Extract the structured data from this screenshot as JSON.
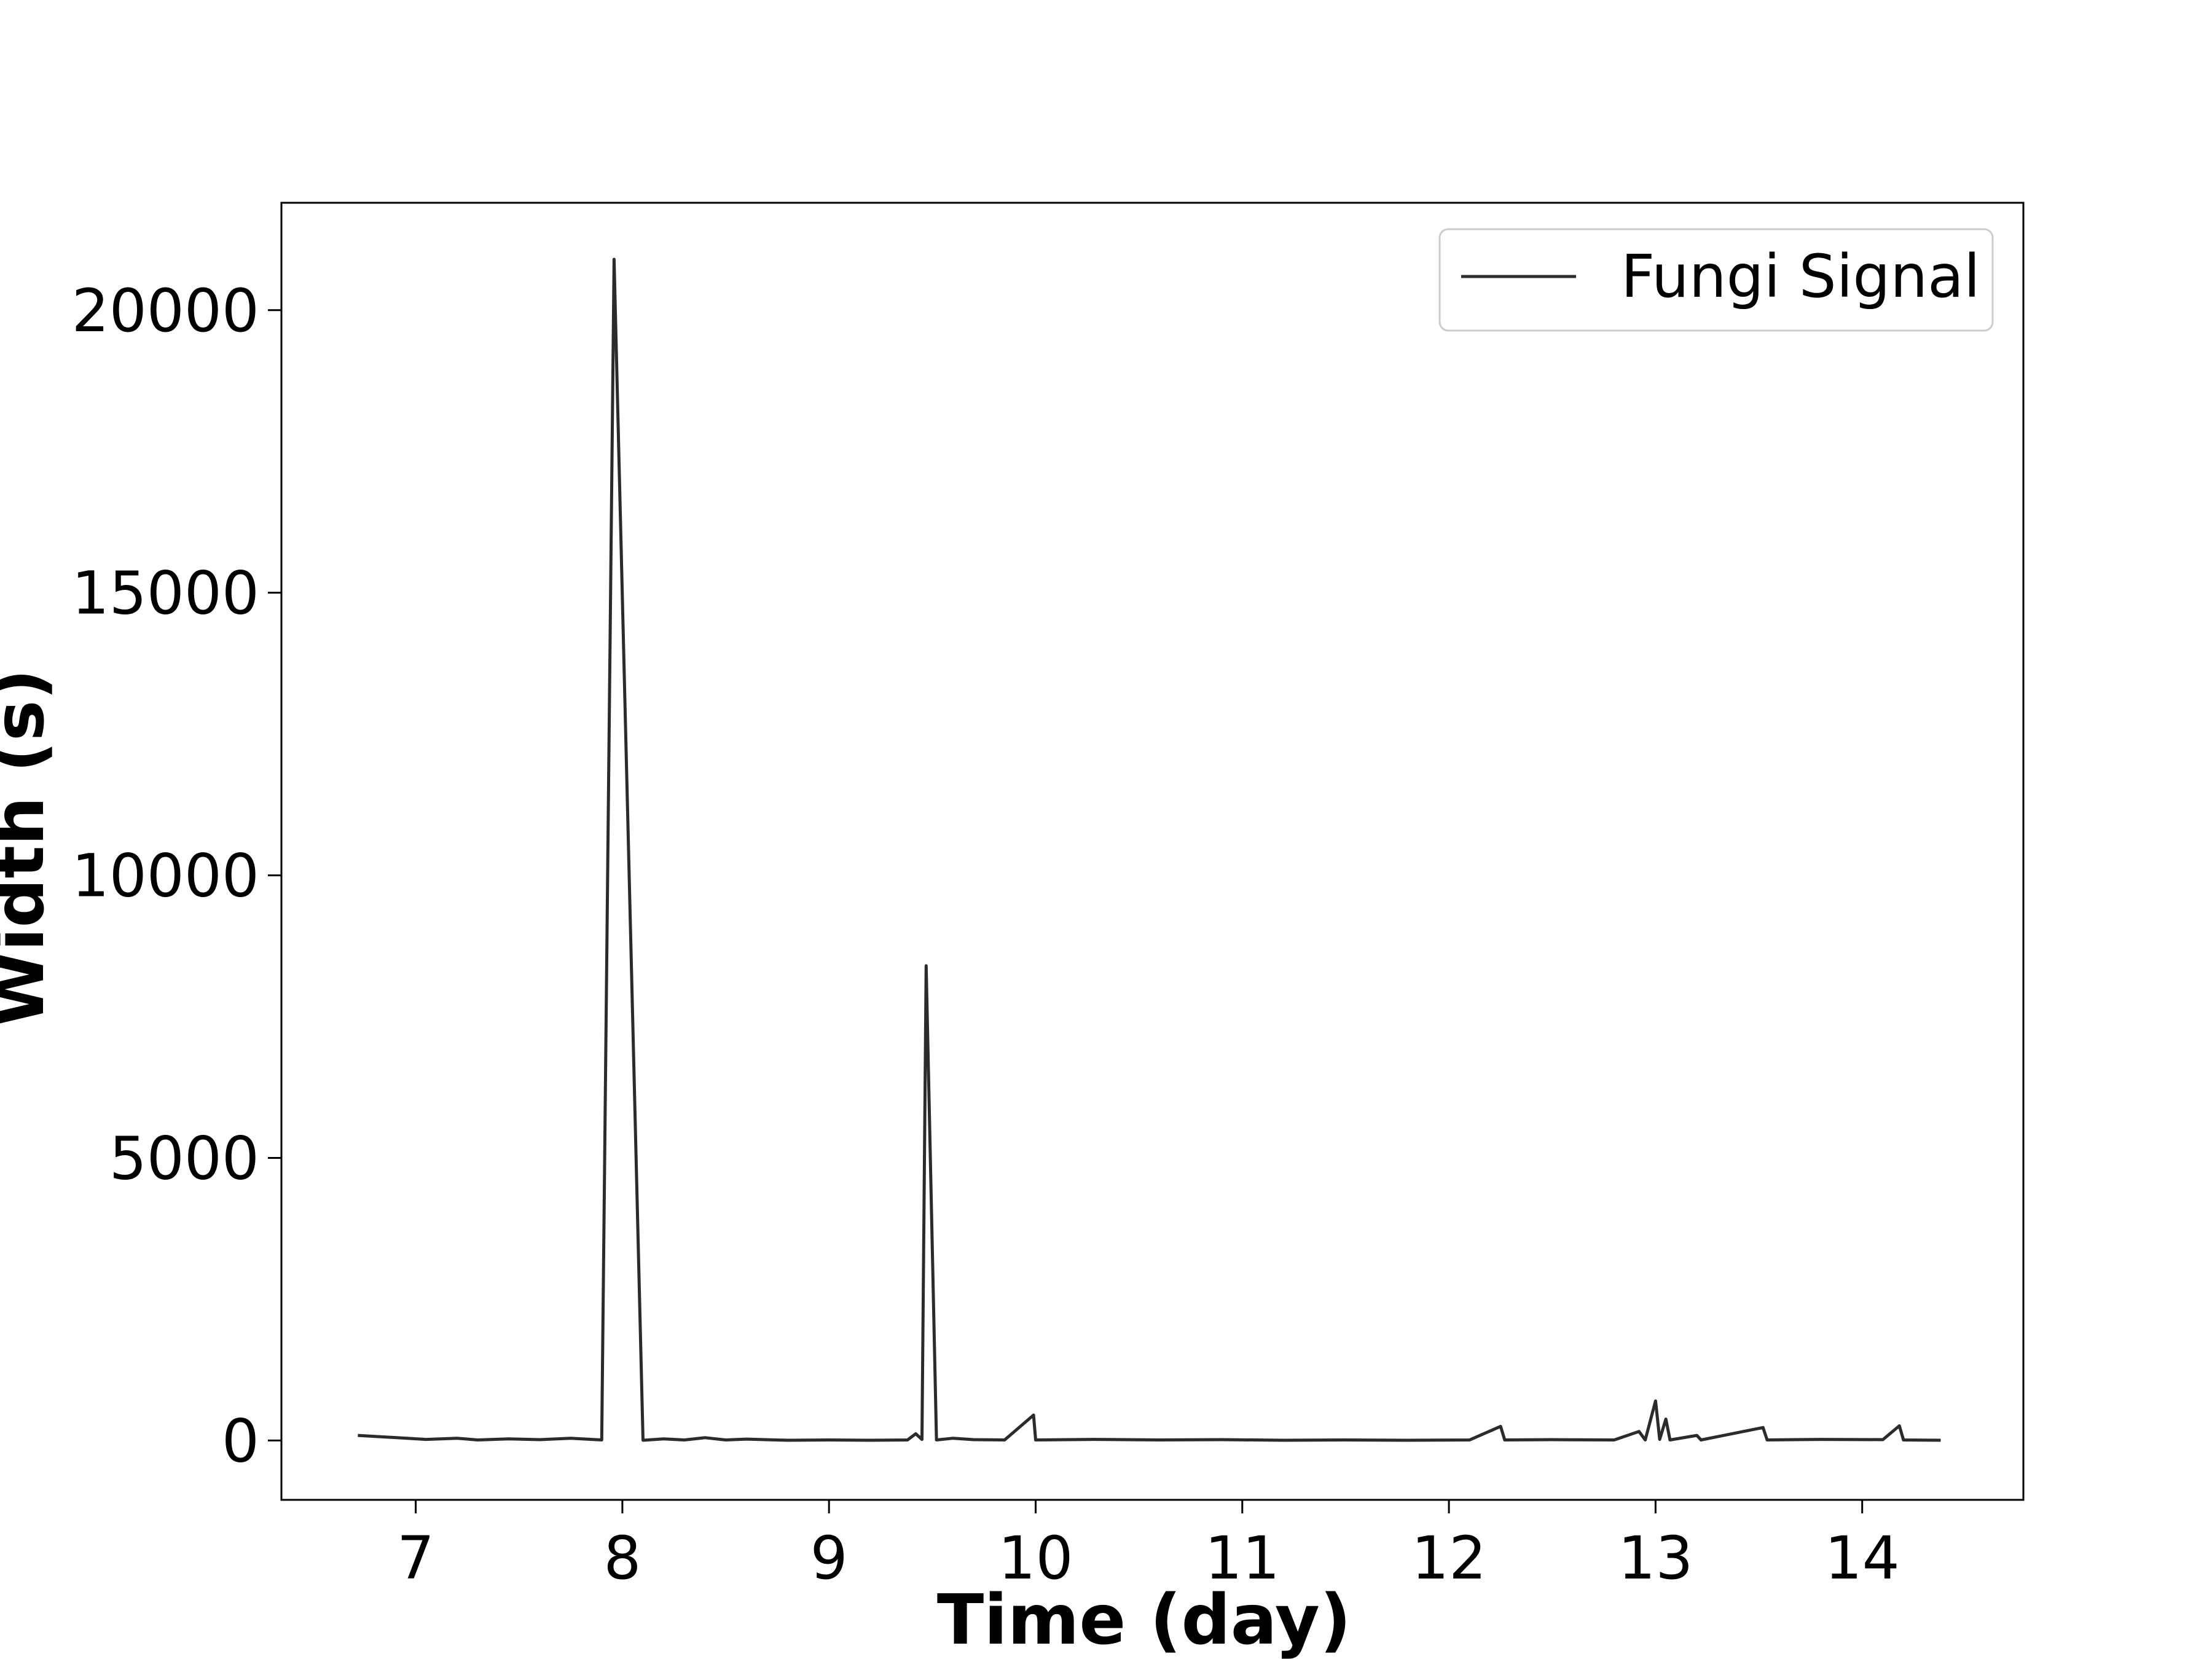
{
  "chart_data": {
    "type": "line",
    "title": "",
    "xlabel": "Time (day)",
    "ylabel": "Width (s)",
    "xlim": [
      6.35,
      14.78
    ],
    "ylim": [
      -1050,
      21900
    ],
    "xticks": [
      7,
      8,
      9,
      10,
      11,
      12,
      13,
      14
    ],
    "yticks": [
      0,
      5000,
      10000,
      15000,
      20000
    ],
    "grid": false,
    "legend": {
      "position": "top-right"
    },
    "series": [
      {
        "name": "Fungi Signal",
        "color": "#2b2b2b",
        "points": [
          [
            6.72,
            90
          ],
          [
            7.05,
            20
          ],
          [
            7.2,
            40
          ],
          [
            7.3,
            10
          ],
          [
            7.45,
            30
          ],
          [
            7.6,
            15
          ],
          [
            7.75,
            40
          ],
          [
            7.9,
            10
          ],
          [
            7.96,
            20900
          ],
          [
            8.1,
            5
          ],
          [
            8.2,
            30
          ],
          [
            8.3,
            10
          ],
          [
            8.4,
            50
          ],
          [
            8.5,
            10
          ],
          [
            8.6,
            25
          ],
          [
            8.8,
            5
          ],
          [
            9.0,
            10
          ],
          [
            9.2,
            5
          ],
          [
            9.38,
            10
          ],
          [
            9.42,
            120
          ],
          [
            9.45,
            20
          ],
          [
            9.47,
            8400
          ],
          [
            9.52,
            10
          ],
          [
            9.6,
            40
          ],
          [
            9.7,
            15
          ],
          [
            9.85,
            10
          ],
          [
            9.99,
            450
          ],
          [
            10.0,
            10
          ],
          [
            10.3,
            20
          ],
          [
            10.6,
            10
          ],
          [
            10.9,
            15
          ],
          [
            11.2,
            5
          ],
          [
            11.5,
            10
          ],
          [
            11.8,
            5
          ],
          [
            12.1,
            10
          ],
          [
            12.25,
            250
          ],
          [
            12.27,
            10
          ],
          [
            12.5,
            15
          ],
          [
            12.8,
            10
          ],
          [
            12.92,
            160
          ],
          [
            12.95,
            10
          ],
          [
            13.0,
            700
          ],
          [
            13.02,
            20
          ],
          [
            13.05,
            380
          ],
          [
            13.07,
            10
          ],
          [
            13.2,
            90
          ],
          [
            13.22,
            10
          ],
          [
            13.52,
            230
          ],
          [
            13.54,
            10
          ],
          [
            13.8,
            20
          ],
          [
            14.1,
            15
          ],
          [
            14.18,
            260
          ],
          [
            14.2,
            10
          ],
          [
            14.38,
            5
          ]
        ]
      }
    ]
  }
}
